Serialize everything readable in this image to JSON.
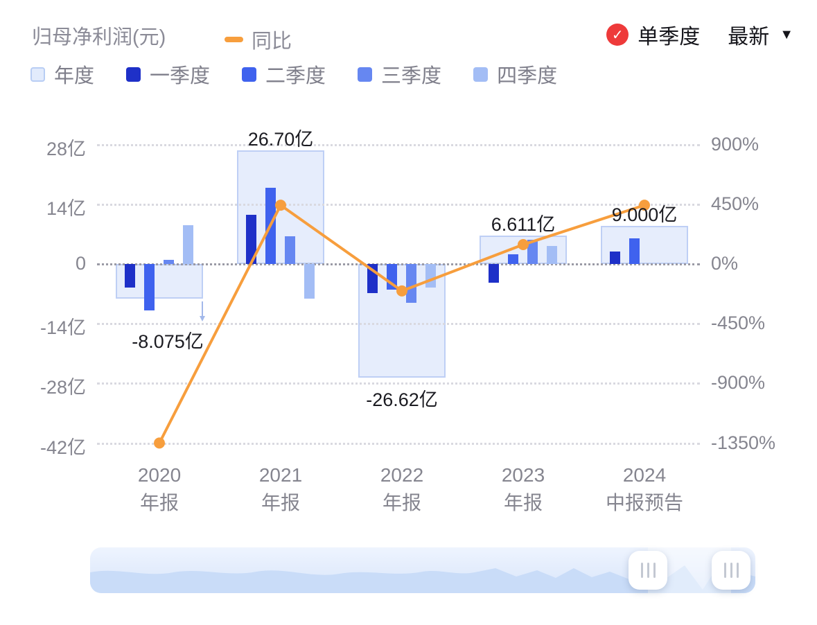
{
  "header": {
    "metric_label": "归母净利润(元)",
    "yoy_label": "同比",
    "single_quarter_label": "单季度",
    "latest_label": "最新",
    "check_icon": "✓",
    "caret_icon": "▼"
  },
  "colors": {
    "accent_orange": "#f79e3d",
    "badge_red": "#ee3a3a",
    "annual_fill": "#e6edfc",
    "annual_border": "#becff5"
  },
  "legend": {
    "items": [
      {
        "key": "annual",
        "label": "年度",
        "swatch": "#e2ebfc",
        "swatch_border": "#b8cdf4"
      },
      {
        "key": "q1",
        "label": "一季度",
        "swatch": "#1e30c8",
        "swatch_border": ""
      },
      {
        "key": "q2",
        "label": "二季度",
        "swatch": "#3f62ee",
        "swatch_border": ""
      },
      {
        "key": "q3",
        "label": "三季度",
        "swatch": "#6687f1",
        "swatch_border": ""
      },
      {
        "key": "q4",
        "label": "四季度",
        "swatch": "#a3bdf5",
        "swatch_border": ""
      }
    ]
  },
  "chart_data": {
    "type": "bar",
    "title": "归母净利润(元)",
    "unit": "亿",
    "grid": "dotted",
    "legend_position": "top",
    "categories": [
      {
        "year": "2020",
        "report": "年报"
      },
      {
        "year": "2021",
        "report": "年报"
      },
      {
        "year": "2022",
        "report": "年报"
      },
      {
        "year": "2023",
        "report": "年报"
      },
      {
        "year": "2024",
        "report": "中报预告"
      }
    ],
    "y_axis_left": {
      "ticks": [
        {
          "label": "28亿",
          "value": 28
        },
        {
          "label": "14亿",
          "value": 14
        },
        {
          "label": "0",
          "value": 0
        },
        {
          "label": "-14亿",
          "value": -14
        },
        {
          "label": "-28亿",
          "value": -28
        },
        {
          "label": "-42亿",
          "value": -42
        }
      ],
      "range": [
        -45,
        30
      ]
    },
    "y_axis_right": {
      "ticks": [
        "900%",
        "450%",
        "0%",
        "-450%",
        "-900%",
        "-1350%"
      ],
      "range_pct": [
        -1450,
        950
      ]
    },
    "annual": {
      "name": "年度",
      "fill": "#e6edfc",
      "border": "#becff5",
      "values": [
        -8.075,
        26.7,
        -26.62,
        6.611,
        9.0
      ],
      "labels": [
        "-8.075亿",
        "26.70亿",
        "-26.62亿",
        "6.611亿",
        "9.000亿"
      ],
      "label_arrow_index": 0
    },
    "series": [
      {
        "name": "一季度",
        "color": "#1e30c8",
        "values": [
          -5.5,
          11.5,
          -6.8,
          -4.4,
          2.9
        ]
      },
      {
        "name": "二季度",
        "color": "#3f62ee",
        "values": [
          -10.9,
          17.9,
          -6.0,
          2.3,
          6.0
        ]
      },
      {
        "name": "三季度",
        "color": "#6687f1",
        "values": [
          0.9,
          6.5,
          -9.1,
          5.7,
          null
        ]
      },
      {
        "name": "四季度",
        "color": "#a3bdf5",
        "values": [
          9.1,
          -8.1,
          -5.5,
          4.2,
          null
        ]
      }
    ],
    "yoy": {
      "name": "同比",
      "color": "#f79e3d",
      "values_pct": [
        -1348,
        443,
        -203,
        146,
        443
      ]
    }
  }
}
